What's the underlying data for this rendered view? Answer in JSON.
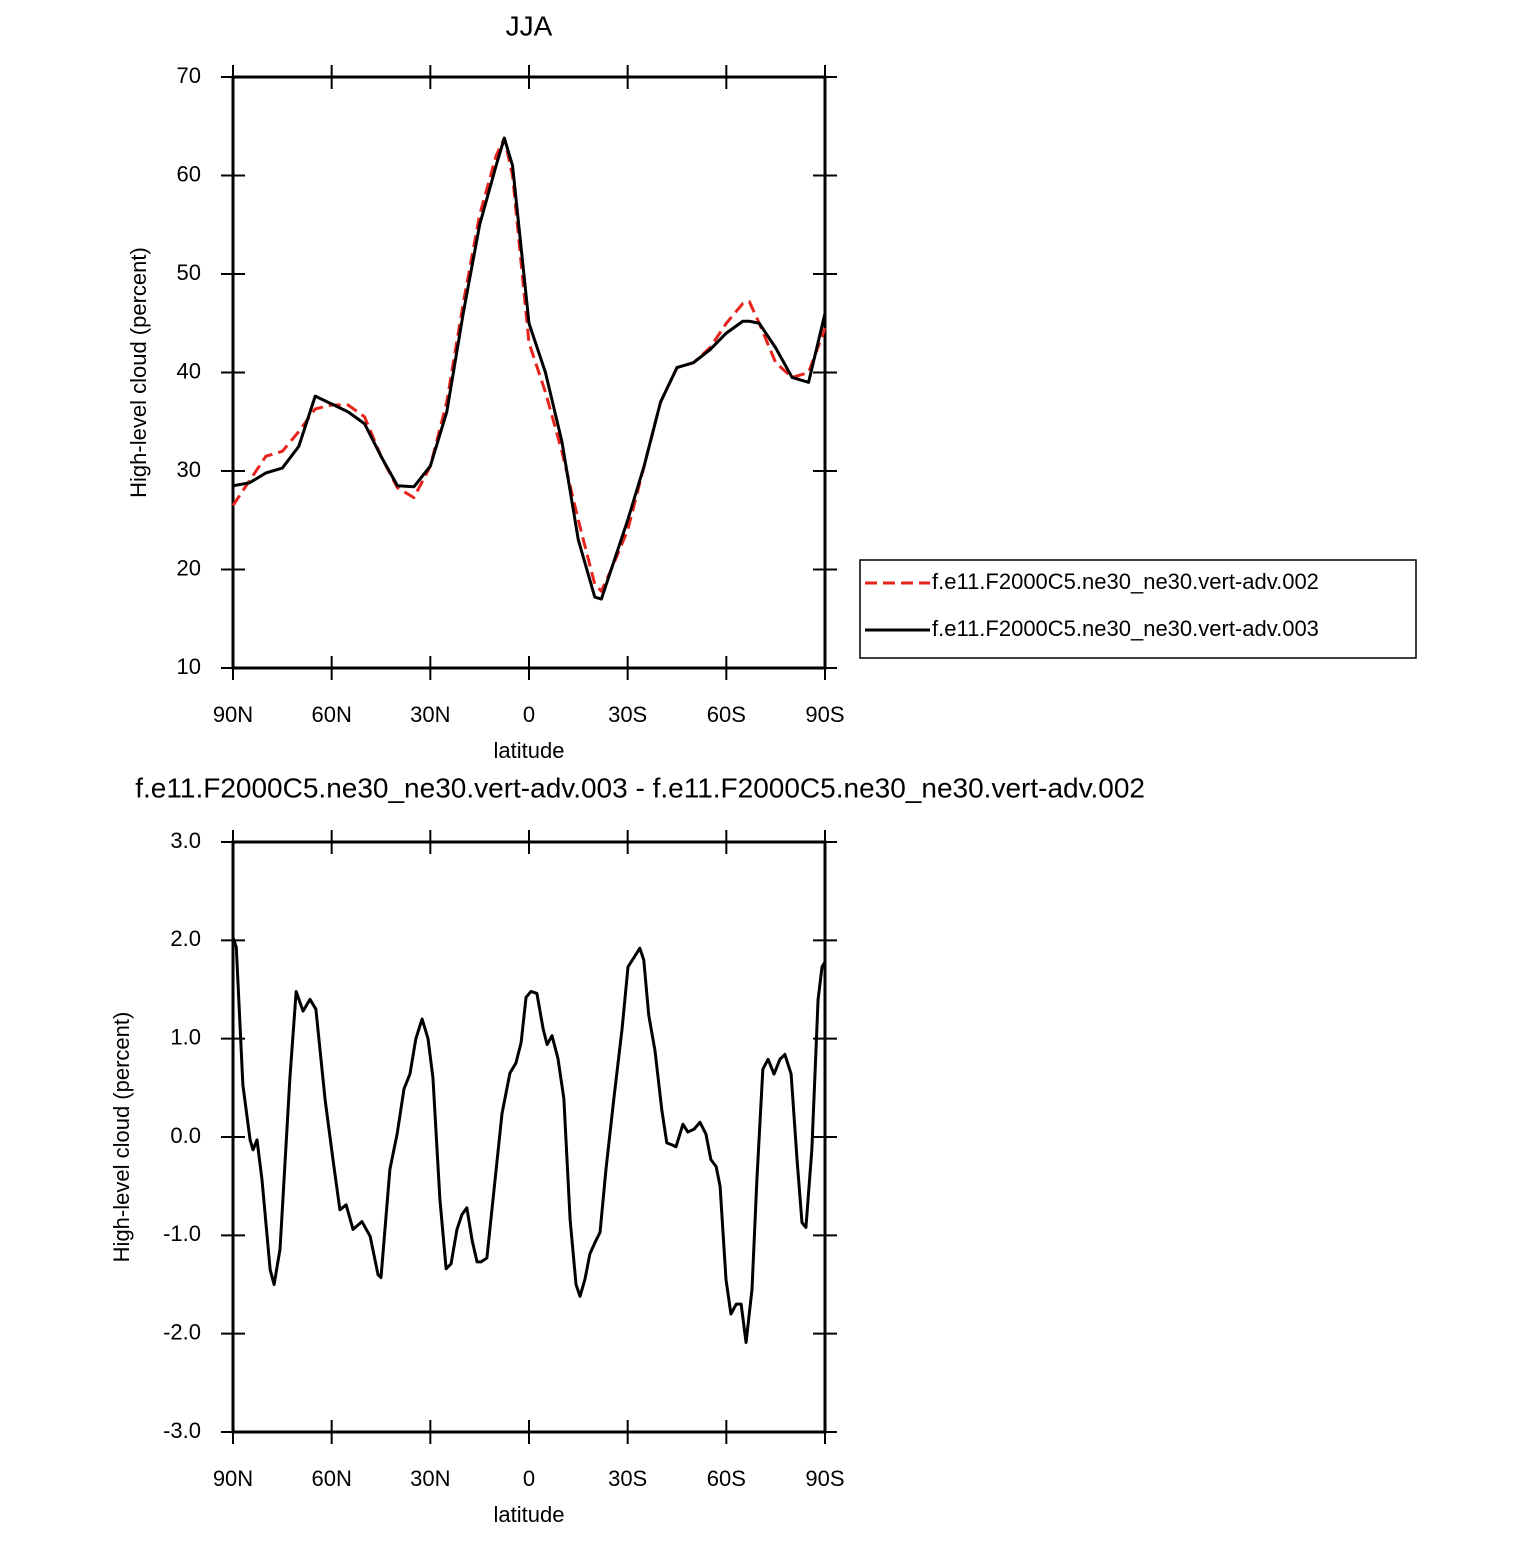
{
  "chart_data": [
    {
      "type": "line",
      "title": "JJA",
      "xlabel": "latitude",
      "ylabel": "High-level cloud (percent)",
      "x": [
        90,
        85,
        80,
        75,
        70,
        65,
        60,
        55,
        50,
        45,
        40,
        35,
        30,
        25,
        20,
        15,
        10,
        7.5,
        5,
        0,
        -5,
        -10,
        -15,
        -20,
        -22,
        -25,
        -30,
        -35,
        -40,
        -45,
        -50,
        -55,
        -60,
        -65,
        -67,
        -70,
        -75,
        -80,
        -85,
        -90
      ],
      "series": [
        {
          "name": "f.e11.F2000C5.ne30_ne30.vert-adv.002",
          "color": "#e8231b",
          "style": "dashed",
          "values": [
            26.5,
            29,
            31.5,
            32,
            34,
            36.3,
            36.7,
            36.7,
            35.5,
            31.5,
            28.3,
            27.3,
            30.5,
            37,
            47,
            56,
            62,
            63.8,
            60,
            43,
            38,
            32,
            25,
            18.5,
            17.8,
            20,
            24,
            30.5,
            37,
            40.5,
            41,
            42.5,
            45,
            47,
            47.2,
            45,
            41,
            39.5,
            40,
            44.5
          ]
        },
        {
          "name": "f.e11.F2000C5.ne30_ne30.vert-adv.003",
          "color": "#000000",
          "style": "solid",
          "values": [
            28.5,
            28.8,
            29.8,
            30.3,
            32.5,
            37.6,
            36.8,
            36,
            34.8,
            31.5,
            28.5,
            28.4,
            30.5,
            36,
            46,
            55,
            61,
            63.8,
            61,
            45,
            40,
            33,
            23,
            17.2,
            17,
            20,
            25,
            30.5,
            37,
            40.5,
            41,
            42.3,
            44,
            45.2,
            45.2,
            45,
            42.5,
            39.5,
            39,
            46
          ]
        }
      ],
      "xlim": [
        90,
        -90
      ],
      "xticks": [
        {
          "value": 90,
          "label": "90N"
        },
        {
          "value": 60,
          "label": "60N"
        },
        {
          "value": 30,
          "label": "30N"
        },
        0,
        {
          "value": -30,
          "label": "30S"
        },
        {
          "value": -60,
          "label": "60S"
        },
        {
          "value": -90,
          "label": "90S"
        }
      ],
      "ylim": [
        10,
        70
      ],
      "yticks": [
        10,
        20,
        30,
        40,
        50,
        60,
        70
      ],
      "legend": "right"
    },
    {
      "type": "line",
      "title": "f.e11.F2000C5.ne30_ne30.vert-adv.003 - f.e11.F2000C5.ne30_ne30.vert-adv.002",
      "xlabel": "latitude",
      "ylabel": "High-level cloud (percent)",
      "color": "#000000",
      "x": [
        90,
        89,
        87,
        84.8,
        83.9,
        82.7,
        81.2,
        78.7,
        77.5,
        75.7,
        72.7,
        70.8,
        68.7,
        66.6,
        64.8,
        62,
        59.6,
        57.5,
        55.6,
        53.5,
        50.8,
        48.3,
        45.9,
        45,
        42.3,
        40.1,
        38,
        36.2,
        34.4,
        32.5,
        30.7,
        29.2,
        27.1,
        25.2,
        23.7,
        21.9,
        20.4,
        18.9,
        17.3,
        15.8,
        14.6,
        12.8,
        10.3,
        8.2,
        5.8,
        4,
        2.4,
        0.9,
        -0.6,
        -2.4,
        -4.3,
        -5.5,
        -7,
        -8.8,
        -10.6,
        -12.5,
        -14.3,
        -15.5,
        -17,
        -18.5,
        -20.1,
        -21.6,
        -23.4,
        -25.8,
        -28.3,
        -30.1,
        -32.2,
        -33.7,
        -34.9,
        -36.4,
        -38.3,
        -40.4,
        -41.9,
        -43.5,
        -44.7,
        -46.8,
        -48.3,
        -50.2,
        -52,
        -53.8,
        -55.3,
        -56.9,
        -58.1,
        -59.9,
        -61.4,
        -63,
        -64.5,
        -66,
        -67.8,
        -69.3,
        -71.1,
        -72.7,
        -74.5,
        -76.3,
        -77.8,
        -79.7,
        -81.5,
        -83,
        -84.2,
        -86,
        -87.9,
        -89.1,
        -90
      ],
      "values": [
        2.03,
        1.93,
        0.53,
        -0.03,
        -0.13,
        -0.03,
        -0.43,
        -1.35,
        -1.5,
        -1.14,
        0.6,
        1.48,
        1.28,
        1.4,
        1.3,
        0.38,
        -0.23,
        -0.74,
        -0.69,
        -0.94,
        -0.86,
        -1.01,
        -1.4,
        -1.43,
        -0.33,
        0.03,
        0.49,
        0.64,
        1.0,
        1.2,
        1.0,
        0.6,
        -0.63,
        -1.34,
        -1.29,
        -0.94,
        -0.79,
        -0.72,
        -1.05,
        -1.27,
        -1.27,
        -1.23,
        -0.43,
        0.24,
        0.65,
        0.75,
        0.96,
        1.42,
        1.48,
        1.46,
        1.1,
        0.94,
        1.03,
        0.8,
        0.39,
        -0.84,
        -1.5,
        -1.62,
        -1.45,
        -1.19,
        -1.07,
        -0.97,
        -0.33,
        0.39,
        1.1,
        1.73,
        1.84,
        1.92,
        1.8,
        1.24,
        0.88,
        0.27,
        -0.06,
        -0.08,
        -0.1,
        0.13,
        0.05,
        0.08,
        0.15,
        0.03,
        -0.23,
        -0.3,
        -0.5,
        -1.45,
        -1.8,
        -1.7,
        -1.7,
        -2.09,
        -1.55,
        -0.43,
        0.69,
        0.79,
        0.64,
        0.79,
        0.84,
        0.64,
        -0.23,
        -0.87,
        -0.92,
        -0.13,
        1.4,
        1.73,
        1.78
      ],
      "xlim": [
        90,
        -90
      ],
      "xticks": [
        {
          "value": 90,
          "label": "90N"
        },
        {
          "value": 60,
          "label": "60N"
        },
        {
          "value": 30,
          "label": "30N"
        },
        0,
        {
          "value": -30,
          "label": "30S"
        },
        {
          "value": -60,
          "label": "60S"
        },
        {
          "value": -90,
          "label": "90S"
        }
      ],
      "ylim": [
        -3,
        3
      ],
      "yticks": [
        {
          "value": -3,
          "label": "-3.0"
        },
        {
          "value": -2,
          "label": "-2.0"
        },
        {
          "value": -1,
          "label": "-1.0"
        },
        {
          "value": 0,
          "label": "0.0"
        },
        {
          "value": 1,
          "label": "1.0"
        },
        {
          "value": 2,
          "label": "2.0"
        },
        {
          "value": 3,
          "label": "3.0"
        }
      ]
    }
  ]
}
